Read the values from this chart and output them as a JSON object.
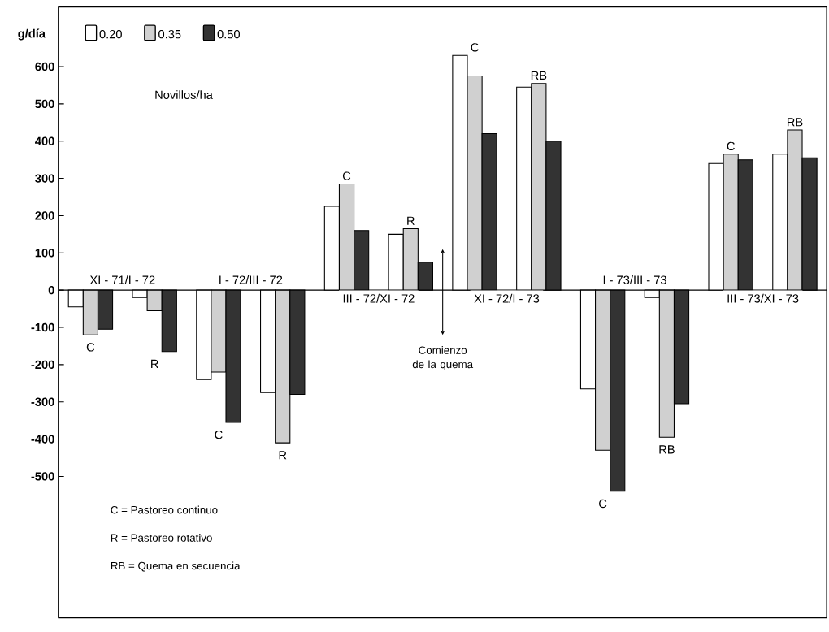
{
  "chart_data": {
    "type": "bar",
    "ylabel": "g/día",
    "legend_title": "Novillos/ha",
    "legend": "top left",
    "categories": [
      "C",
      "R",
      "C",
      "R",
      "C",
      "R",
      "C",
      "RB",
      "C",
      "RB",
      "C",
      "RB"
    ],
    "series": [
      {
        "name": "0.20",
        "color": "#ffffff",
        "values": [
          -45,
          -20,
          -240,
          -275,
          225,
          150,
          630,
          545,
          -265,
          -20,
          340,
          365
        ]
      },
      {
        "name": "0.35",
        "color": "#d0d0d0",
        "values": [
          -120,
          -55,
          -220,
          -410,
          285,
          165,
          575,
          555,
          -430,
          -395,
          365,
          430
        ]
      },
      {
        "name": "0.50",
        "color": "#333333",
        "values": [
          -105,
          -165,
          -355,
          -280,
          160,
          75,
          420,
          400,
          -540,
          -305,
          350,
          355
        ]
      }
    ],
    "ylim": [
      -880,
      760
    ],
    "yticks": [
      -500,
      -400,
      -300,
      -200,
      -100,
      0,
      100,
      200,
      300,
      400,
      500,
      600
    ],
    "annotations": [
      "XI - 71/I - 72",
      "I - 72/III - 72",
      "III - 72/XI - 72",
      "XI - 72/I - 73",
      "I - 73/III - 73",
      "III - 73/XI - 73",
      "C = Pastoreo continuo",
      "R = Pastoreo rotativo",
      "RB = Quema en secuencia",
      "Comienzo de la quema"
    ]
  }
}
